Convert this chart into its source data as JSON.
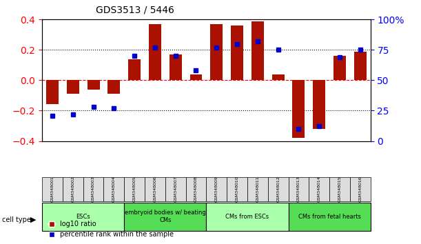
{
  "title": "GDS3513 / 5446",
  "samples": [
    "GSM348001",
    "GSM348002",
    "GSM348003",
    "GSM348004",
    "GSM348005",
    "GSM348006",
    "GSM348007",
    "GSM348008",
    "GSM348009",
    "GSM348010",
    "GSM348011",
    "GSM348012",
    "GSM348013",
    "GSM348014",
    "GSM348015",
    "GSM348016"
  ],
  "log10_ratio": [
    -0.155,
    -0.09,
    -0.06,
    -0.09,
    0.14,
    0.37,
    0.17,
    0.04,
    0.37,
    0.36,
    0.39,
    0.04,
    -0.38,
    -0.32,
    0.16,
    0.19
  ],
  "percentile_rank": [
    21,
    22,
    28,
    27,
    70,
    77,
    70,
    58,
    77,
    80,
    82,
    75,
    10,
    12,
    69,
    75
  ],
  "cell_type_groups": [
    {
      "label": "ESCs",
      "start": 0,
      "end": 4,
      "color": "#aaffaa"
    },
    {
      "label": "embryoid bodies w/ beating\nCMs",
      "start": 4,
      "end": 8,
      "color": "#55dd55"
    },
    {
      "label": "CMs from ESCs",
      "start": 8,
      "end": 12,
      "color": "#aaffaa"
    },
    {
      "label": "CMs from fetal hearts",
      "start": 12,
      "end": 16,
      "color": "#55dd55"
    }
  ],
  "bar_color": "#aa1100",
  "point_color": "#0000cc",
  "ylim_left": [
    -0.4,
    0.4
  ],
  "ylim_right": [
    0,
    100
  ],
  "yticks_left": [
    -0.4,
    -0.2,
    0,
    0.2,
    0.4
  ],
  "yticks_right": [
    0,
    25,
    50,
    75,
    100
  ],
  "hlines": [
    -0.2,
    0.0,
    0.2
  ],
  "bar_width": 0.6
}
